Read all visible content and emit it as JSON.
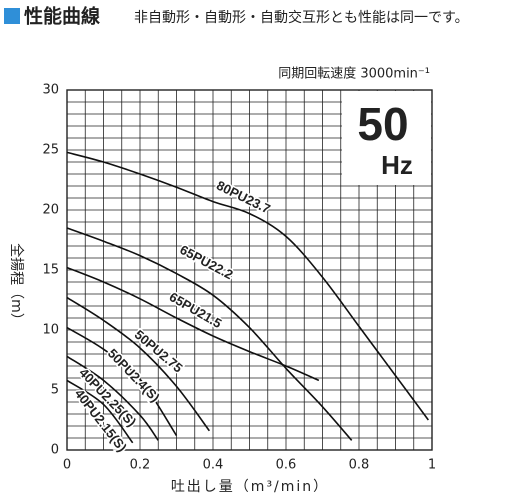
{
  "chart_data": {
    "type": "line",
    "title": "性能曲線",
    "subtitle": "非自動形・自動形・自動交互形とも性能は同一です。",
    "annotation": "同期回転速度 3000min⁻¹",
    "frequency_value": "50",
    "frequency_unit": "Hz",
    "x_label": "吐出し量（m³/min）",
    "y_label": "全揚程（m）",
    "xlim": [
      0,
      1.0
    ],
    "ylim": [
      0,
      30
    ],
    "xticks": [
      0,
      0.2,
      0.4,
      0.6,
      0.8,
      1.0
    ],
    "yticks": [
      0,
      5,
      10,
      15,
      20,
      25,
      30
    ],
    "grid": true,
    "series": [
      {
        "name": "80PU23.7",
        "color": "#111111",
        "x": [
          0,
          0.1,
          0.2,
          0.3,
          0.4,
          0.5,
          0.6,
          0.7,
          0.8,
          0.9,
          0.99
        ],
        "values": [
          24.8,
          24.0,
          23.0,
          21.9,
          20.7,
          19.7,
          17.8,
          14.4,
          10.3,
          6.2,
          2.5
        ]
      },
      {
        "name": "65PU22.2",
        "color": "#111111",
        "x": [
          0,
          0.1,
          0.2,
          0.3,
          0.4,
          0.5,
          0.6,
          0.7,
          0.78
        ],
        "values": [
          18.5,
          17.4,
          16.2,
          14.7,
          12.9,
          10.2,
          6.8,
          3.6,
          0.8
        ]
      },
      {
        "name": "65PU21.5",
        "color": "#111111",
        "x": [
          0,
          0.1,
          0.2,
          0.3,
          0.4,
          0.5,
          0.6,
          0.69
        ],
        "values": [
          15.2,
          14.0,
          12.6,
          11.0,
          9.5,
          8.2,
          7.0,
          5.8
        ]
      },
      {
        "name": "50PU2.75",
        "color": "#111111",
        "x": [
          0,
          0.1,
          0.2,
          0.3,
          0.39
        ],
        "values": [
          12.7,
          10.8,
          8.5,
          5.3,
          1.6
        ]
      },
      {
        "name": "50PU2.4(S)",
        "color": "#111111",
        "x": [
          0,
          0.1,
          0.2,
          0.3
        ],
        "values": [
          10.2,
          8.4,
          5.9,
          1.2
        ]
      },
      {
        "name": "40PU2.25(S)",
        "color": "#111111",
        "x": [
          0,
          0.1,
          0.2,
          0.25
        ],
        "values": [
          7.8,
          5.8,
          2.9,
          0.8
        ]
      },
      {
        "name": "40PU2.15(S)",
        "color": "#111111",
        "x": [
          0,
          0.1,
          0.18
        ],
        "values": [
          5.8,
          3.8,
          0.6
        ]
      }
    ]
  }
}
